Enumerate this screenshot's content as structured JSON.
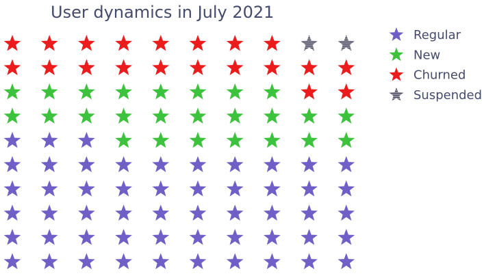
{
  "chart_data": {
    "type": "pictogram",
    "title": "User dynamics in July 2021",
    "marker": "star",
    "grid": {
      "rows": 10,
      "columns": 10
    },
    "unit_count": 100,
    "series": [
      {
        "name": "Regular",
        "count": 53,
        "color": "#6f5fc6"
      },
      {
        "name": "New",
        "count": 25,
        "color": "#3dc23d"
      },
      {
        "name": "Churned",
        "count": 20,
        "color": "#ec1c1c"
      },
      {
        "name": "Suspended",
        "count": 2,
        "color": "#6a6a7e"
      }
    ],
    "fill_order": "bottom-to-top, left-to-right",
    "legend_position": "right",
    "suspended_pattern": "hatched"
  }
}
